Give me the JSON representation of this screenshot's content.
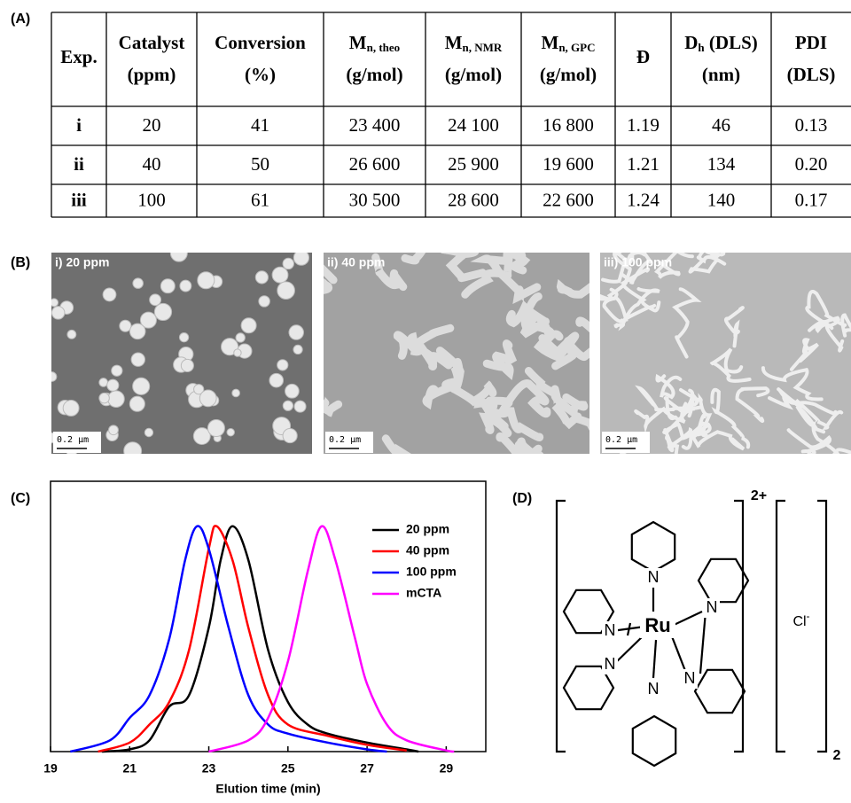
{
  "panels": {
    "a": "(A)",
    "b": "(B)",
    "c": "(C)",
    "d": "(D)"
  },
  "table": {
    "header": [
      {
        "line1": "Exp."
      },
      {
        "line1": "Catalyst",
        "line2": "(ppm)"
      },
      {
        "line1": "Conversion",
        "line2": "(%)"
      },
      {
        "line1": "M",
        "sub": "n, theo",
        "line2": "(g/mol)"
      },
      {
        "line1": "M",
        "sub": "n, NMR",
        "line2": "(g/mol)"
      },
      {
        "line1": "M",
        "sub": "n, GPC",
        "line2": "(g/mol)"
      },
      {
        "line1": "Đ"
      },
      {
        "line1": "D",
        "sub": "h",
        "after": " (DLS)",
        "line2": "(nm)"
      },
      {
        "line1": "PDI",
        "line2": "(DLS)"
      }
    ],
    "rows": [
      [
        "i",
        "20",
        "41",
        "23 400",
        "24 100",
        "16 800",
        "1.19",
        "46",
        "0.13"
      ],
      [
        "ii",
        "40",
        "50",
        "26 600",
        "25 900",
        "19 600",
        "1.21",
        "134",
        "0.20"
      ],
      [
        "iii",
        "100",
        "61",
        "30 500",
        "28 600",
        "22 600",
        "1.24",
        "140",
        "0.17"
      ]
    ]
  },
  "micrographs": [
    {
      "label": "i) 20 ppm",
      "scale": "0.2 µm"
    },
    {
      "label": "ii) 40 ppm",
      "scale": "0.2 µm"
    },
    {
      "label": "iii) 100 ppm",
      "scale": "0.2 µm"
    }
  ],
  "chart_data": {
    "type": "line",
    "xlabel": "Elution time (min)",
    "xlim": [
      19,
      30
    ],
    "xticks": [
      19,
      21,
      23,
      25,
      27,
      29
    ],
    "ylim": [
      0,
      1.2
    ],
    "legend": "upper right",
    "series": [
      {
        "name": "20 ppm",
        "color": "#000000",
        "x": [
          20.3,
          21,
          21.5,
          22,
          22.5,
          23,
          23.3,
          23.6,
          24,
          24.5,
          25,
          25.5,
          26,
          27,
          28,
          28.3
        ],
        "values": [
          0,
          0.01,
          0.05,
          0.2,
          0.25,
          0.55,
          0.85,
          1.0,
          0.85,
          0.45,
          0.22,
          0.12,
          0.08,
          0.04,
          0.01,
          0
        ]
      },
      {
        "name": "40 ppm",
        "color": "#ff0000",
        "x": [
          20.2,
          21,
          21.5,
          22,
          22.5,
          23,
          23.2,
          23.6,
          24,
          24.5,
          25,
          26,
          27,
          28
        ],
        "values": [
          0,
          0.04,
          0.12,
          0.22,
          0.45,
          0.9,
          1.0,
          0.85,
          0.55,
          0.25,
          0.12,
          0.07,
          0.03,
          0.005
        ]
      },
      {
        "name": "100 ppm",
        "color": "#0000ff",
        "x": [
          19.5,
          20.5,
          21,
          21.5,
          22,
          22.4,
          22.7,
          23,
          23.5,
          24,
          24.5,
          25,
          26,
          27,
          27.5
        ],
        "values": [
          0,
          0.05,
          0.15,
          0.25,
          0.5,
          0.85,
          1.0,
          0.9,
          0.55,
          0.25,
          0.12,
          0.08,
          0.04,
          0.01,
          0
        ]
      },
      {
        "name": "mCTA",
        "color": "#ff00ff",
        "x": [
          23,
          24,
          24.5,
          25,
          25.5,
          25.85,
          26.2,
          26.7,
          27,
          27.5,
          28,
          29,
          29.2
        ],
        "values": [
          0,
          0.05,
          0.15,
          0.4,
          0.8,
          1.0,
          0.85,
          0.5,
          0.3,
          0.12,
          0.05,
          0.005,
          0
        ]
      }
    ]
  },
  "structure": {
    "metal": "Ru",
    "ligand_atoms": [
      "N",
      "N",
      "N",
      "N",
      "N",
      "N"
    ],
    "charge": "2+",
    "counterion": "Cl",
    "counterion_charge": "-",
    "count": "2"
  }
}
